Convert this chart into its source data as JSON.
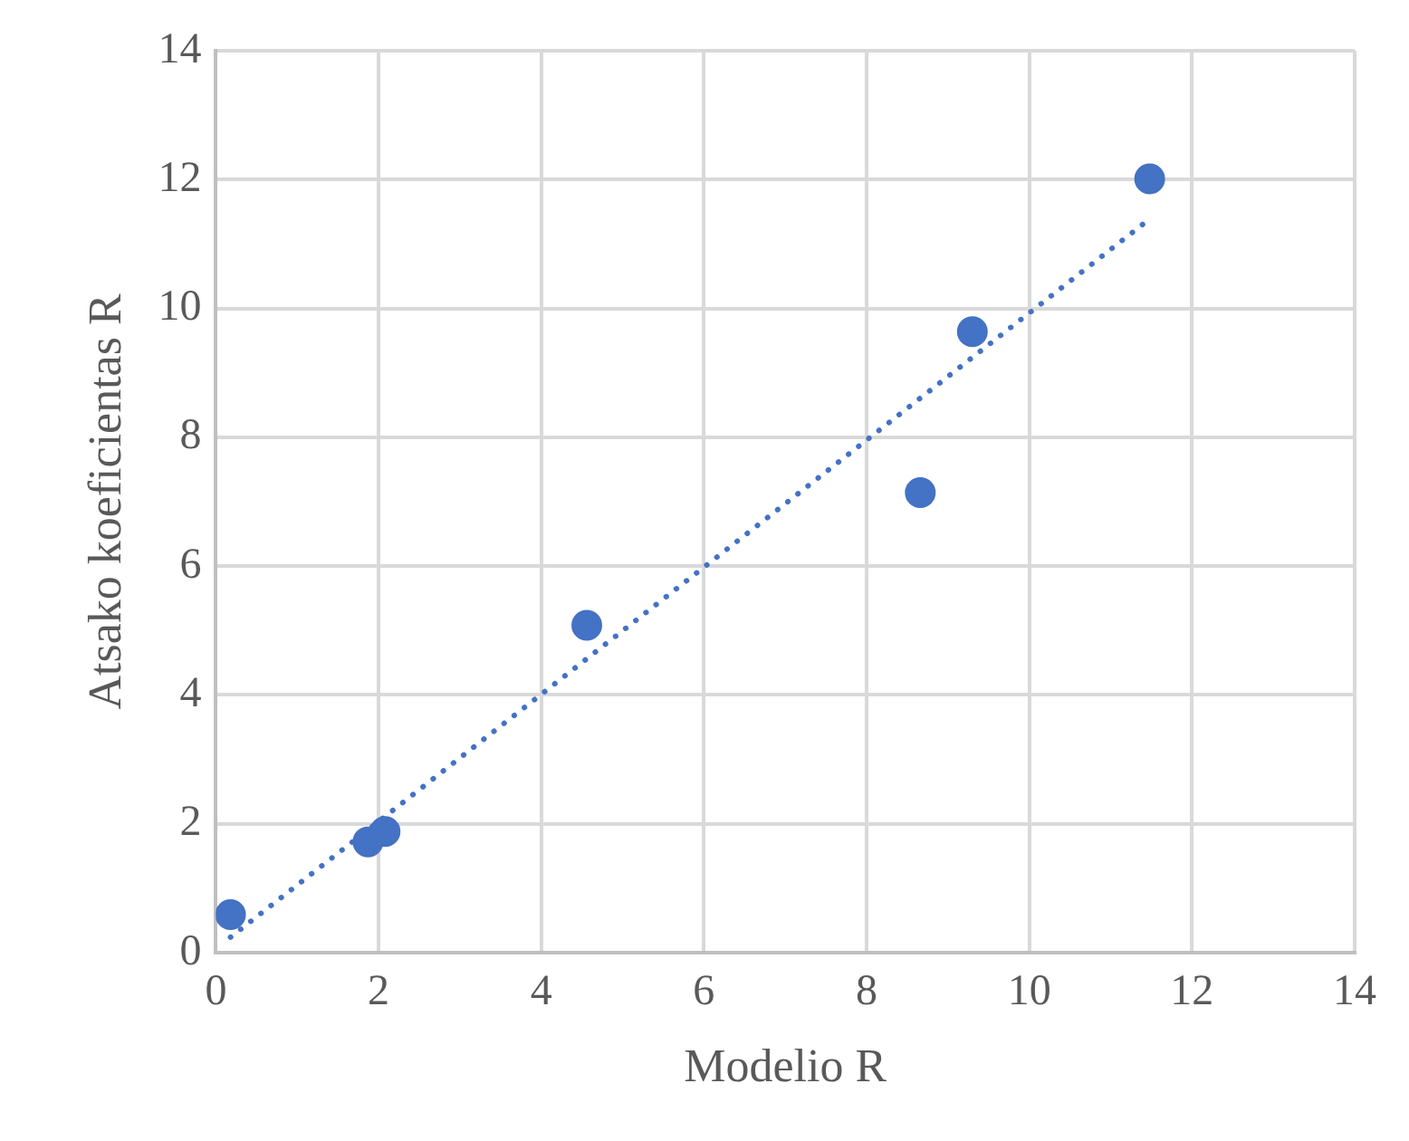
{
  "chart_data": {
    "type": "scatter",
    "xlabel": "Modelio R",
    "ylabel": "Atsako koeficientas R",
    "xlim": [
      0,
      14
    ],
    "xticks": [
      0,
      2,
      4,
      6,
      8,
      10,
      12,
      14
    ],
    "ylim": [
      0,
      14
    ],
    "yticks": [
      0,
      2,
      4,
      6,
      8,
      10,
      12,
      14
    ],
    "grid": true,
    "legend": false,
    "marker": "circle",
    "series": [
      {
        "color": "#4472c4",
        "x": [
          0.18,
          1.87,
          2.08,
          4.56,
          8.66,
          9.3,
          11.48
        ],
        "values": [
          0.59,
          1.72,
          1.88,
          5.08,
          7.14,
          9.64,
          12.01
        ]
      },
      {
        "type": "line",
        "color": "#4472c4",
        "line_style": "dotted",
        "marker": "none",
        "x": [
          0.18,
          11.43
        ],
        "values": [
          0.24,
          11.34
        ]
      }
    ]
  }
}
